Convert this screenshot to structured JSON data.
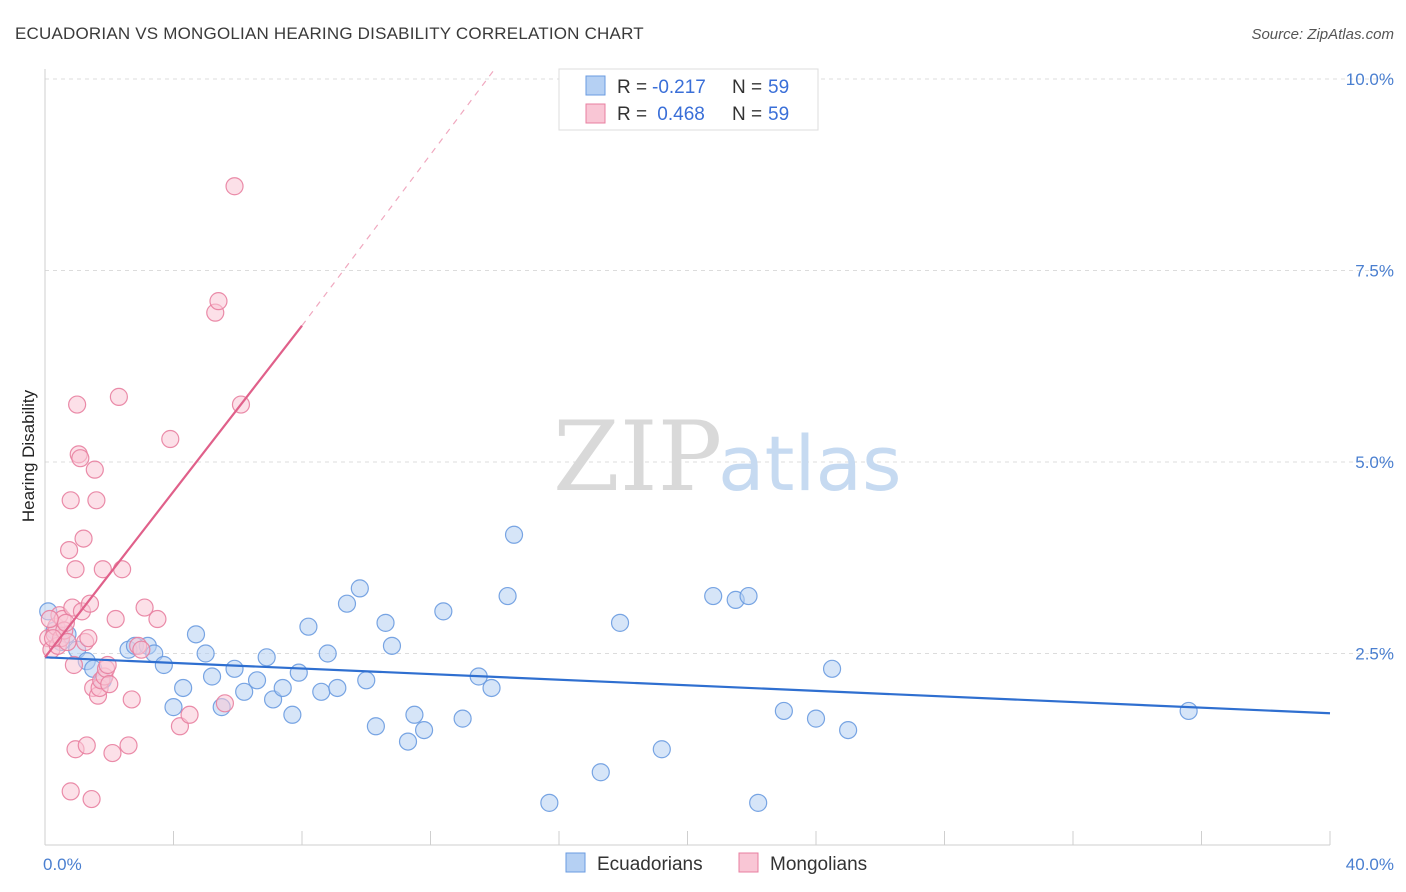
{
  "title": "ECUADORIAN VS MONGOLIAN HEARING DISABILITY CORRELATION CHART",
  "source": "Source: ZipAtlas.com",
  "watermark": {
    "zip": "ZIP",
    "atlas": "atlas"
  },
  "legend_top": [
    {
      "r_label": "R = ",
      "r_value": "-0.217",
      "n_label": "N = ",
      "n_value": "59",
      "color": "#a9c8f0",
      "stroke": "#6a9be0"
    },
    {
      "r_label": "R = ",
      "r_value": " 0.468",
      "n_label": "N = ",
      "n_value": "59",
      "color": "#f7bccd",
      "stroke": "#e87fa0"
    }
  ],
  "legend_bottom": [
    {
      "label": "Ecuadorians",
      "color": "#b5d0f3",
      "stroke": "#6a9be0"
    },
    {
      "label": "Mongolians",
      "color": "#f9c6d5",
      "stroke": "#e87fa0"
    }
  ],
  "chart_data": {
    "type": "scatter",
    "title": "ECUADORIAN VS MONGOLIAN HEARING DISABILITY CORRELATION CHART",
    "xlabel": "",
    "ylabel": "Hearing Disability",
    "xlim": [
      0,
      40
    ],
    "ylim": [
      0,
      10.5
    ],
    "x_ticks": [
      "0.0%",
      "40.0%"
    ],
    "y_ticks": [
      {
        "value": 2.5,
        "label": "2.5%"
      },
      {
        "value": 5.0,
        "label": "5.0%"
      },
      {
        "value": 7.5,
        "label": "7.5%"
      },
      {
        "value": 10.0,
        "label": "10.0%"
      }
    ],
    "grid": true,
    "series": [
      {
        "name": "Ecuadorians",
        "color": "#6a9be0",
        "fill": "#b5d0f3",
        "trend": {
          "x0": 0,
          "y0": 2.45,
          "x1": 40,
          "y1": 1.72
        },
        "points": [
          [
            0.1,
            3.05
          ],
          [
            0.3,
            2.8
          ],
          [
            0.5,
            2.65
          ],
          [
            0.7,
            2.75
          ],
          [
            1.0,
            2.55
          ],
          [
            1.3,
            2.4
          ],
          [
            1.5,
            2.3
          ],
          [
            1.8,
            2.15
          ],
          [
            2.6,
            2.55
          ],
          [
            2.8,
            2.6
          ],
          [
            3.2,
            2.6
          ],
          [
            3.4,
            2.5
          ],
          [
            3.7,
            2.35
          ],
          [
            4.0,
            1.8
          ],
          [
            4.3,
            2.05
          ],
          [
            4.7,
            2.75
          ],
          [
            5.0,
            2.5
          ],
          [
            5.2,
            2.2
          ],
          [
            5.5,
            1.8
          ],
          [
            5.9,
            2.3
          ],
          [
            6.2,
            2.0
          ],
          [
            6.6,
            2.15
          ],
          [
            6.9,
            2.45
          ],
          [
            7.1,
            1.9
          ],
          [
            7.4,
            2.05
          ],
          [
            7.7,
            1.7
          ],
          [
            7.9,
            2.25
          ],
          [
            8.2,
            2.85
          ],
          [
            8.6,
            2.0
          ],
          [
            8.8,
            2.5
          ],
          [
            9.1,
            2.05
          ],
          [
            9.4,
            3.15
          ],
          [
            9.8,
            3.35
          ],
          [
            10.0,
            2.15
          ],
          [
            10.3,
            1.55
          ],
          [
            10.6,
            2.9
          ],
          [
            10.8,
            2.6
          ],
          [
            11.3,
            1.35
          ],
          [
            11.5,
            1.7
          ],
          [
            11.8,
            1.5
          ],
          [
            12.4,
            3.05
          ],
          [
            13.0,
            1.65
          ],
          [
            13.5,
            2.2
          ],
          [
            13.9,
            2.05
          ],
          [
            14.4,
            3.25
          ],
          [
            14.6,
            4.05
          ],
          [
            15.7,
            0.55
          ],
          [
            17.3,
            0.95
          ],
          [
            17.9,
            2.9
          ],
          [
            19.2,
            1.25
          ],
          [
            20.8,
            3.25
          ],
          [
            21.5,
            3.2
          ],
          [
            21.9,
            3.25
          ],
          [
            22.2,
            0.55
          ],
          [
            23.0,
            1.75
          ],
          [
            24.0,
            1.65
          ],
          [
            24.5,
            2.3
          ],
          [
            25.0,
            1.5
          ],
          [
            35.6,
            1.75
          ]
        ]
      },
      {
        "name": "Mongolians",
        "color": "#e87fa0",
        "fill": "#f9c6d5",
        "trend": {
          "x0": 0,
          "y0": 2.45,
          "x1": 8.0,
          "y1": 6.78
        },
        "trend_dashed": {
          "x0": 8.0,
          "y0": 6.78,
          "x1": 14.0,
          "y1": 10.5
        },
        "points": [
          [
            0.1,
            2.7
          ],
          [
            0.2,
            2.55
          ],
          [
            0.3,
            2.75
          ],
          [
            0.35,
            2.85
          ],
          [
            0.4,
            2.6
          ],
          [
            0.45,
            3.0
          ],
          [
            0.5,
            2.7
          ],
          [
            0.55,
            2.95
          ],
          [
            0.6,
            2.8
          ],
          [
            0.7,
            2.65
          ],
          [
            0.75,
            3.85
          ],
          [
            0.8,
            4.5
          ],
          [
            0.85,
            3.1
          ],
          [
            0.9,
            2.35
          ],
          [
            0.95,
            1.25
          ],
          [
            0.95,
            3.6
          ],
          [
            0.8,
            0.7
          ],
          [
            1.0,
            5.75
          ],
          [
            1.05,
            5.1
          ],
          [
            1.1,
            5.05
          ],
          [
            1.15,
            3.05
          ],
          [
            1.2,
            4.0
          ],
          [
            1.25,
            2.65
          ],
          [
            1.3,
            1.3
          ],
          [
            1.4,
            3.15
          ],
          [
            1.45,
            0.6
          ],
          [
            1.5,
            2.05
          ],
          [
            1.55,
            4.9
          ],
          [
            1.6,
            4.5
          ],
          [
            1.65,
            1.95
          ],
          [
            1.7,
            2.05
          ],
          [
            1.75,
            2.15
          ],
          [
            1.8,
            3.6
          ],
          [
            1.85,
            2.2
          ],
          [
            1.9,
            2.3
          ],
          [
            1.95,
            2.35
          ],
          [
            2.1,
            1.2
          ],
          [
            2.2,
            2.95
          ],
          [
            2.3,
            5.85
          ],
          [
            2.4,
            3.6
          ],
          [
            2.6,
            1.3
          ],
          [
            2.7,
            1.9
          ],
          [
            2.9,
            2.6
          ],
          [
            3.1,
            3.1
          ],
          [
            3.5,
            2.95
          ],
          [
            3.9,
            5.3
          ],
          [
            4.2,
            1.55
          ],
          [
            4.5,
            1.7
          ],
          [
            5.3,
            6.95
          ],
          [
            5.4,
            7.1
          ],
          [
            5.6,
            1.85
          ],
          [
            5.9,
            8.6
          ],
          [
            6.1,
            5.75
          ],
          [
            0.25,
            2.7
          ],
          [
            0.65,
            2.9
          ],
          [
            1.35,
            2.7
          ],
          [
            2.0,
            2.1
          ],
          [
            3.0,
            2.55
          ],
          [
            0.15,
            2.95
          ]
        ]
      }
    ]
  }
}
